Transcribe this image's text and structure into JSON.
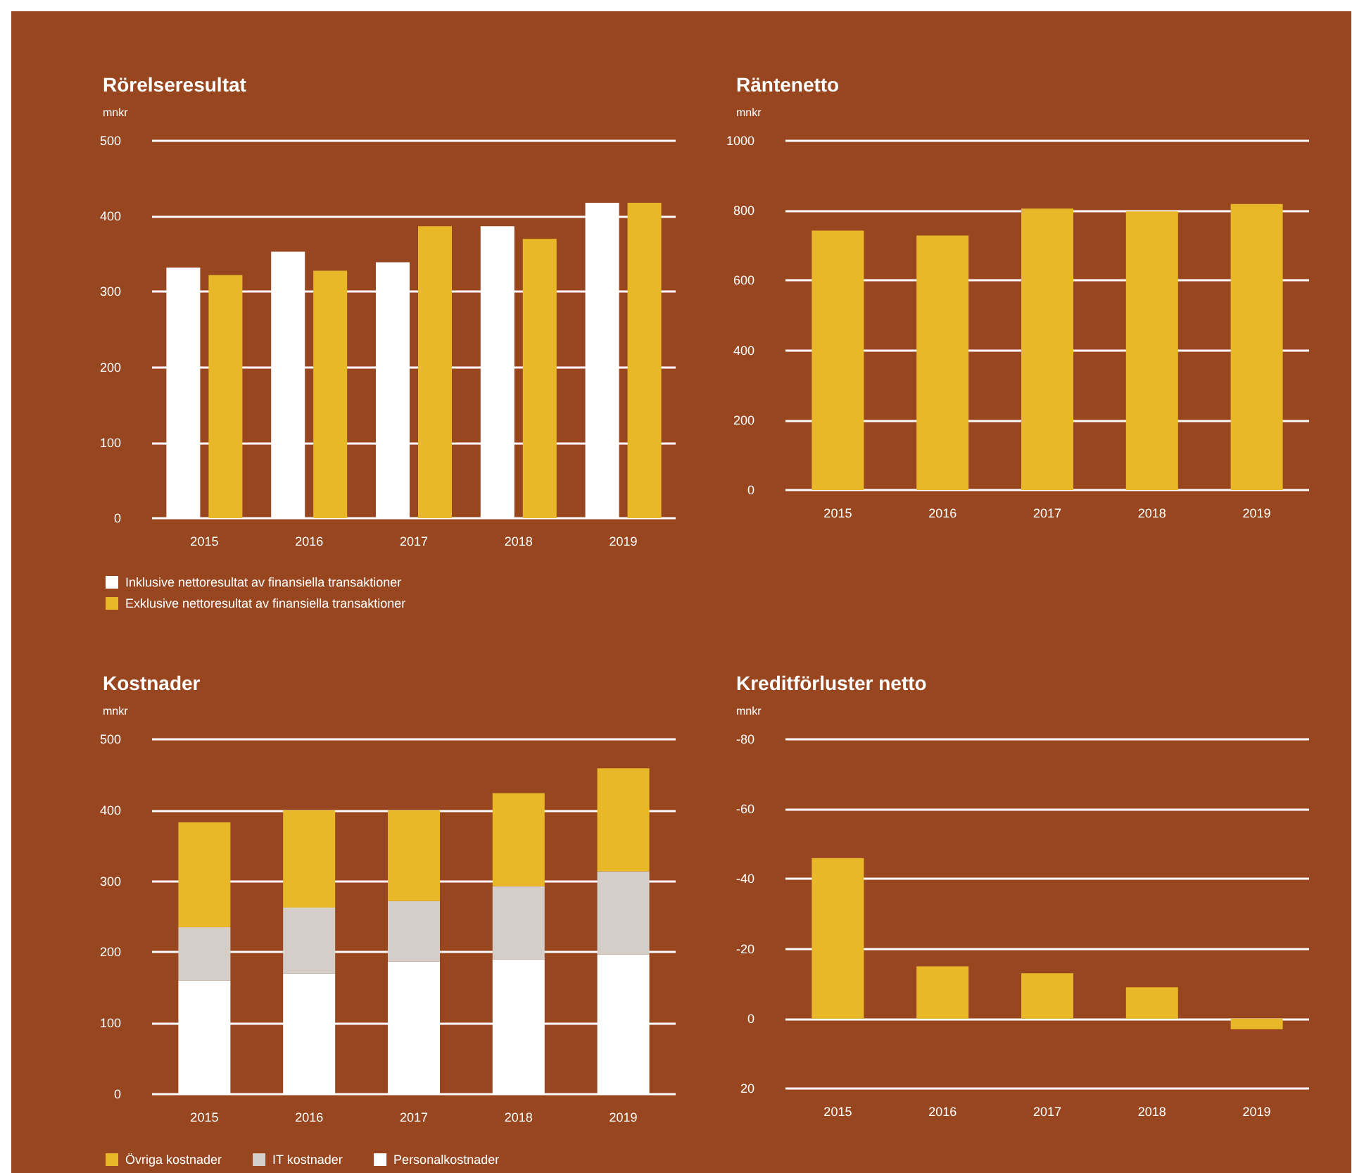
{
  "chart_data": [
    {
      "type": "bar",
      "title": "Rörelseresultat",
      "ylabel": "mnkr",
      "categories": [
        "2015",
        "2016",
        "2017",
        "2018",
        "2019"
      ],
      "series": [
        {
          "name": "Inklusive nettoresultat av finansiella transaktioner",
          "color": "#ffffff",
          "values": [
            332,
            353,
            339,
            387,
            418
          ]
        },
        {
          "name": "Exklusive nettoresultat av finansiella transaktioner",
          "color": "#e8b828",
          "values": [
            322,
            328,
            387,
            370,
            418
          ]
        }
      ],
      "ylim": [
        0,
        500
      ],
      "yticks": [
        0,
        100,
        200,
        300,
        400,
        500
      ],
      "grid": "y",
      "legend": "bottom left"
    },
    {
      "type": "bar",
      "title": "Räntenetto",
      "ylabel": "mnkr",
      "categories": [
        "2015",
        "2016",
        "2017",
        "2018",
        "2019"
      ],
      "series": [
        {
          "color": "#e8b828",
          "values": [
            743,
            729,
            806,
            798,
            819
          ]
        }
      ],
      "ylim": [
        0,
        1000
      ],
      "yticks": [
        0,
        200,
        400,
        600,
        800,
        1000
      ],
      "grid": "y"
    },
    {
      "type": "bar",
      "title": "Kostnader",
      "ylabel": "mnkr",
      "categories": [
        "2015",
        "2016",
        "2017",
        "2018",
        "2019"
      ],
      "stacked": true,
      "series": [
        {
          "name": "Personalkostnader",
          "color": "#ffffff",
          "values": [
            160,
            170,
            187,
            190,
            197
          ]
        },
        {
          "name": "IT kostnader",
          "color": "#d4cdc8",
          "values": [
            75,
            93,
            85,
            103,
            117
          ]
        },
        {
          "name": "Övriga kostnader",
          "color": "#e8b828",
          "values": [
            148,
            137,
            128,
            131,
            145
          ]
        }
      ],
      "ylim": [
        0,
        500
      ],
      "yticks": [
        0,
        100,
        200,
        300,
        400,
        500
      ],
      "grid": "y",
      "legend": "bottom left"
    },
    {
      "type": "bar",
      "title": "Kreditförluster netto",
      "ylabel": "mnkr",
      "categories": [
        "2015",
        "2016",
        "2017",
        "2018",
        "2019"
      ],
      "series": [
        {
          "color": "#e8b828",
          "values": [
            -46,
            -15,
            -13,
            -9,
            3
          ]
        }
      ],
      "ylim": [
        20,
        -80
      ],
      "yticks": [
        -80,
        -60,
        -40,
        -20,
        0,
        20
      ],
      "grid": "y"
    }
  ]
}
